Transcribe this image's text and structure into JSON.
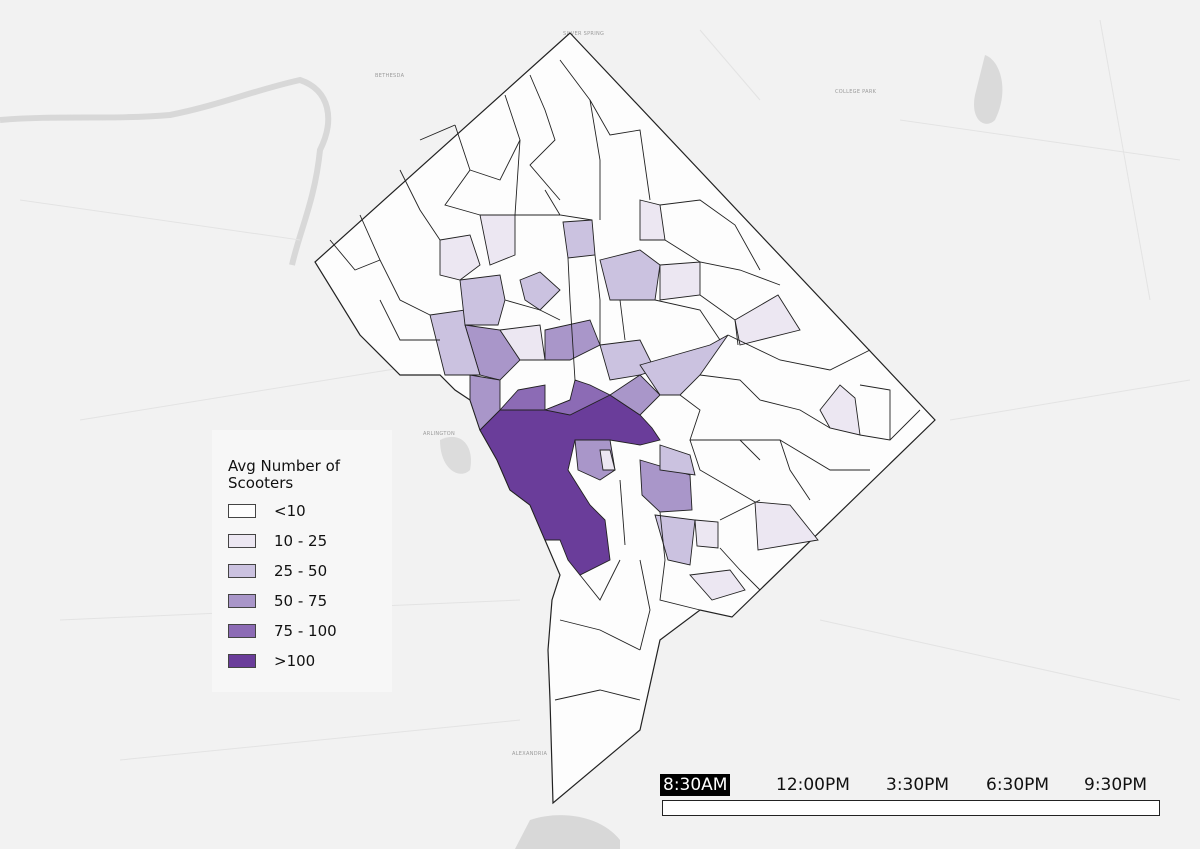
{
  "legend": {
    "title": "Avg Number of Scooters",
    "classes": [
      {
        "label": "<10",
        "color": "#fdfdfd"
      },
      {
        "label": "10 - 25",
        "color": "#ece7f2"
      },
      {
        "label": "25 - 50",
        "color": "#cbc2e0"
      },
      {
        "label": "50 - 75",
        "color": "#a996c9"
      },
      {
        "label": "75 - 100",
        "color": "#8c6bb5"
      },
      {
        "label": ">100",
        "color": "#6a3d9a"
      }
    ]
  },
  "timeline": {
    "times": [
      "8:30AM",
      "12:00PM",
      "3:30PM",
      "6:30PM",
      "9:30PM"
    ],
    "active_index": 0,
    "progress": 0
  },
  "basemap_labels": [
    "SILVER SPRING",
    "BETHESDA",
    "COLLEGE PARK",
    "ARLINGTON",
    "ALEXANDRIA"
  ]
}
